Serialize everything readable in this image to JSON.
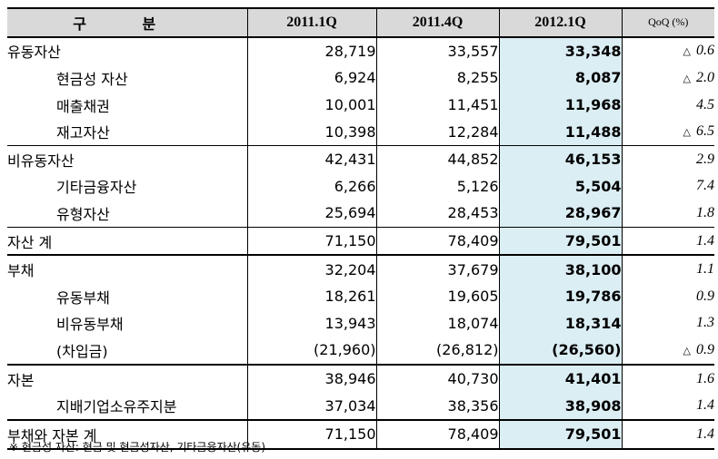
{
  "header": {
    "label": "구 분",
    "cols": [
      "2011.1Q",
      "2011.4Q",
      "2012.1Q",
      "QoQ (%)"
    ]
  },
  "rows": [
    {
      "label": "유동자산",
      "v1": "28,719",
      "v2": "33,557",
      "v3": "33,348",
      "qoq": "0.6",
      "neg": true
    },
    {
      "label": "현금성 자산",
      "v1": "6,924",
      "v2": "8,255",
      "v3": "8,087",
      "qoq": "2.0",
      "neg": true
    },
    {
      "label": "매출채권",
      "v1": "10,001",
      "v2": "11,451",
      "v3": "11,968",
      "qoq": "4.5",
      "neg": false
    },
    {
      "label": "재고자산",
      "v1": "10,398",
      "v2": "12,284",
      "v3": "11,488",
      "qoq": "6.5",
      "neg": true
    },
    {
      "label": "비유동자산",
      "v1": "42,431",
      "v2": "44,852",
      "v3": "46,153",
      "qoq": "2.9",
      "neg": false
    },
    {
      "label": "기타금융자산",
      "v1": "6,266",
      "v2": "5,126",
      "v3": "5,504",
      "qoq": "7.4",
      "neg": false
    },
    {
      "label": "유형자산",
      "v1": "25,694",
      "v2": "28,453",
      "v3": "28,967",
      "qoq": "1.8",
      "neg": false
    },
    {
      "label": "자산 계",
      "v1": "71,150",
      "v2": "78,409",
      "v3": "79,501",
      "qoq": "1.4",
      "neg": false
    },
    {
      "label": "부채",
      "v1": "32,204",
      "v2": "37,679",
      "v3": "38,100",
      "qoq": "1.1",
      "neg": false
    },
    {
      "label": "유동부채",
      "v1": "18,261",
      "v2": "19,605",
      "v3": "19,786",
      "qoq": "0.9",
      "neg": false
    },
    {
      "label": "비유동부채",
      "v1": "13,943",
      "v2": "18,074",
      "v3": "18,314",
      "qoq": "1.3",
      "neg": false
    },
    {
      "label": "(차입금)",
      "v1": "(21,960)",
      "v2": "(26,812)",
      "v3": "(26,560)",
      "qoq": "0.9",
      "neg": true
    },
    {
      "label": "자본",
      "v1": "38,946",
      "v2": "40,730",
      "v3": "41,401",
      "qoq": "1.6",
      "neg": false
    },
    {
      "label": "지배기업소유주지분",
      "v1": "37,034",
      "v2": "38,356",
      "v3": "38,908",
      "qoq": "1.4",
      "neg": false
    },
    {
      "label": "부채와 자본 계",
      "v1": "71,150",
      "v2": "78,409",
      "v3": "79,501",
      "qoq": "1.4",
      "neg": false
    }
  ],
  "neg_symbol": "△",
  "footnote": "※ 현금성 자산: 현금 및 현금성자산, 기타금융자산(유동)",
  "colors": {
    "header_bg": "#d9d9d9",
    "highlight_bg": "#dbeef4"
  }
}
